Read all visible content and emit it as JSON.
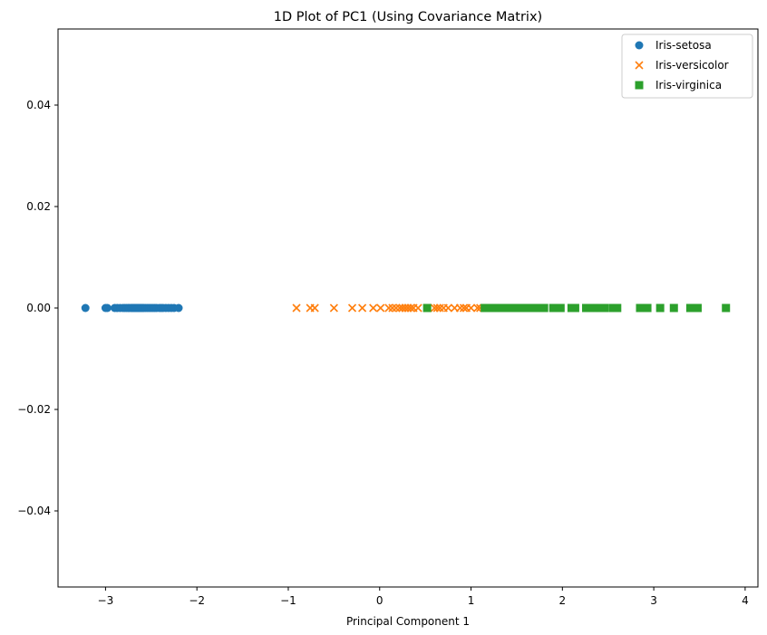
{
  "chart_data": {
    "type": "scatter",
    "title": "1D Plot of PC1 (Using Covariance Matrix)",
    "xlabel": "Principal Component 1",
    "ylabel": "",
    "xlim": [
      -3.52,
      4.14
    ],
    "ylim": [
      -0.055,
      0.055
    ],
    "xticks": [
      -3,
      -2,
      -1,
      0,
      1,
      2,
      3,
      4
    ],
    "xtick_labels": [
      "−3",
      "−2",
      "−1",
      "0",
      "1",
      "2",
      "3",
      "4"
    ],
    "yticks": [
      -0.04,
      -0.02,
      0.0,
      0.02,
      0.04
    ],
    "ytick_labels": [
      "−0.04",
      "−0.02",
      "0.00",
      "0.02",
      "0.04"
    ],
    "grid": false,
    "legend": "top-right",
    "series": [
      {
        "name": "Iris-setosa",
        "marker": "circle",
        "color": "#1f77b4",
        "x": [
          -3.22,
          -3.0,
          -2.98,
          -2.9,
          -2.87,
          -2.84,
          -2.81,
          -2.79,
          -2.77,
          -2.75,
          -2.74,
          -2.72,
          -2.71,
          -2.7,
          -2.69,
          -2.68,
          -2.67,
          -2.66,
          -2.65,
          -2.64,
          -2.63,
          -2.62,
          -2.61,
          -2.6,
          -2.59,
          -2.58,
          -2.56,
          -2.54,
          -2.52,
          -2.5,
          -2.48,
          -2.46,
          -2.44,
          -2.41,
          -2.39,
          -2.37,
          -2.34,
          -2.31,
          -2.28,
          -2.25,
          -2.2
        ],
        "y": [
          0,
          0,
          0,
          0,
          0,
          0,
          0,
          0,
          0,
          0,
          0,
          0,
          0,
          0,
          0,
          0,
          0,
          0,
          0,
          0,
          0,
          0,
          0,
          0,
          0,
          0,
          0,
          0,
          0,
          0,
          0,
          0,
          0,
          0,
          0,
          0,
          0,
          0,
          0,
          0,
          0
        ]
      },
      {
        "name": "Iris-versicolor",
        "marker": "x",
        "color": "#ff7f0e",
        "x": [
          -0.91,
          -0.76,
          -0.71,
          -0.5,
          -0.3,
          -0.19,
          -0.07,
          0.01,
          0.1,
          0.14,
          0.18,
          0.22,
          0.25,
          0.28,
          0.31,
          0.34,
          0.37,
          0.42,
          0.52,
          0.6,
          0.63,
          0.66,
          0.7,
          0.75,
          0.82,
          0.88,
          0.92,
          0.95,
          1.0,
          1.07,
          1.1
        ],
        "y": [
          0,
          0,
          0,
          0,
          0,
          0,
          0,
          0,
          0,
          0,
          0,
          0,
          0,
          0,
          0,
          0,
          0,
          0,
          0,
          0,
          0,
          0,
          0,
          0,
          0,
          0,
          0,
          0,
          0,
          0,
          0
        ]
      },
      {
        "name": "Iris-virginica",
        "marker": "square",
        "color": "#2ca02c",
        "x": [
          0.52,
          1.15,
          1.2,
          1.24,
          1.28,
          1.31,
          1.34,
          1.37,
          1.4,
          1.43,
          1.5,
          1.56,
          1.62,
          1.68,
          1.76,
          1.8,
          1.9,
          1.94,
          1.98,
          2.1,
          2.14,
          2.26,
          2.3,
          2.34,
          2.38,
          2.42,
          2.46,
          2.55,
          2.6,
          2.85,
          2.9,
          2.93,
          3.07,
          3.22,
          3.4,
          3.44,
          3.48,
          3.79
        ],
        "y": [
          0,
          0,
          0,
          0,
          0,
          0,
          0,
          0,
          0,
          0,
          0,
          0,
          0,
          0,
          0,
          0,
          0,
          0,
          0,
          0,
          0,
          0,
          0,
          0,
          0,
          0,
          0,
          0,
          0,
          0,
          0,
          0,
          0,
          0,
          0,
          0,
          0,
          0
        ]
      }
    ]
  }
}
